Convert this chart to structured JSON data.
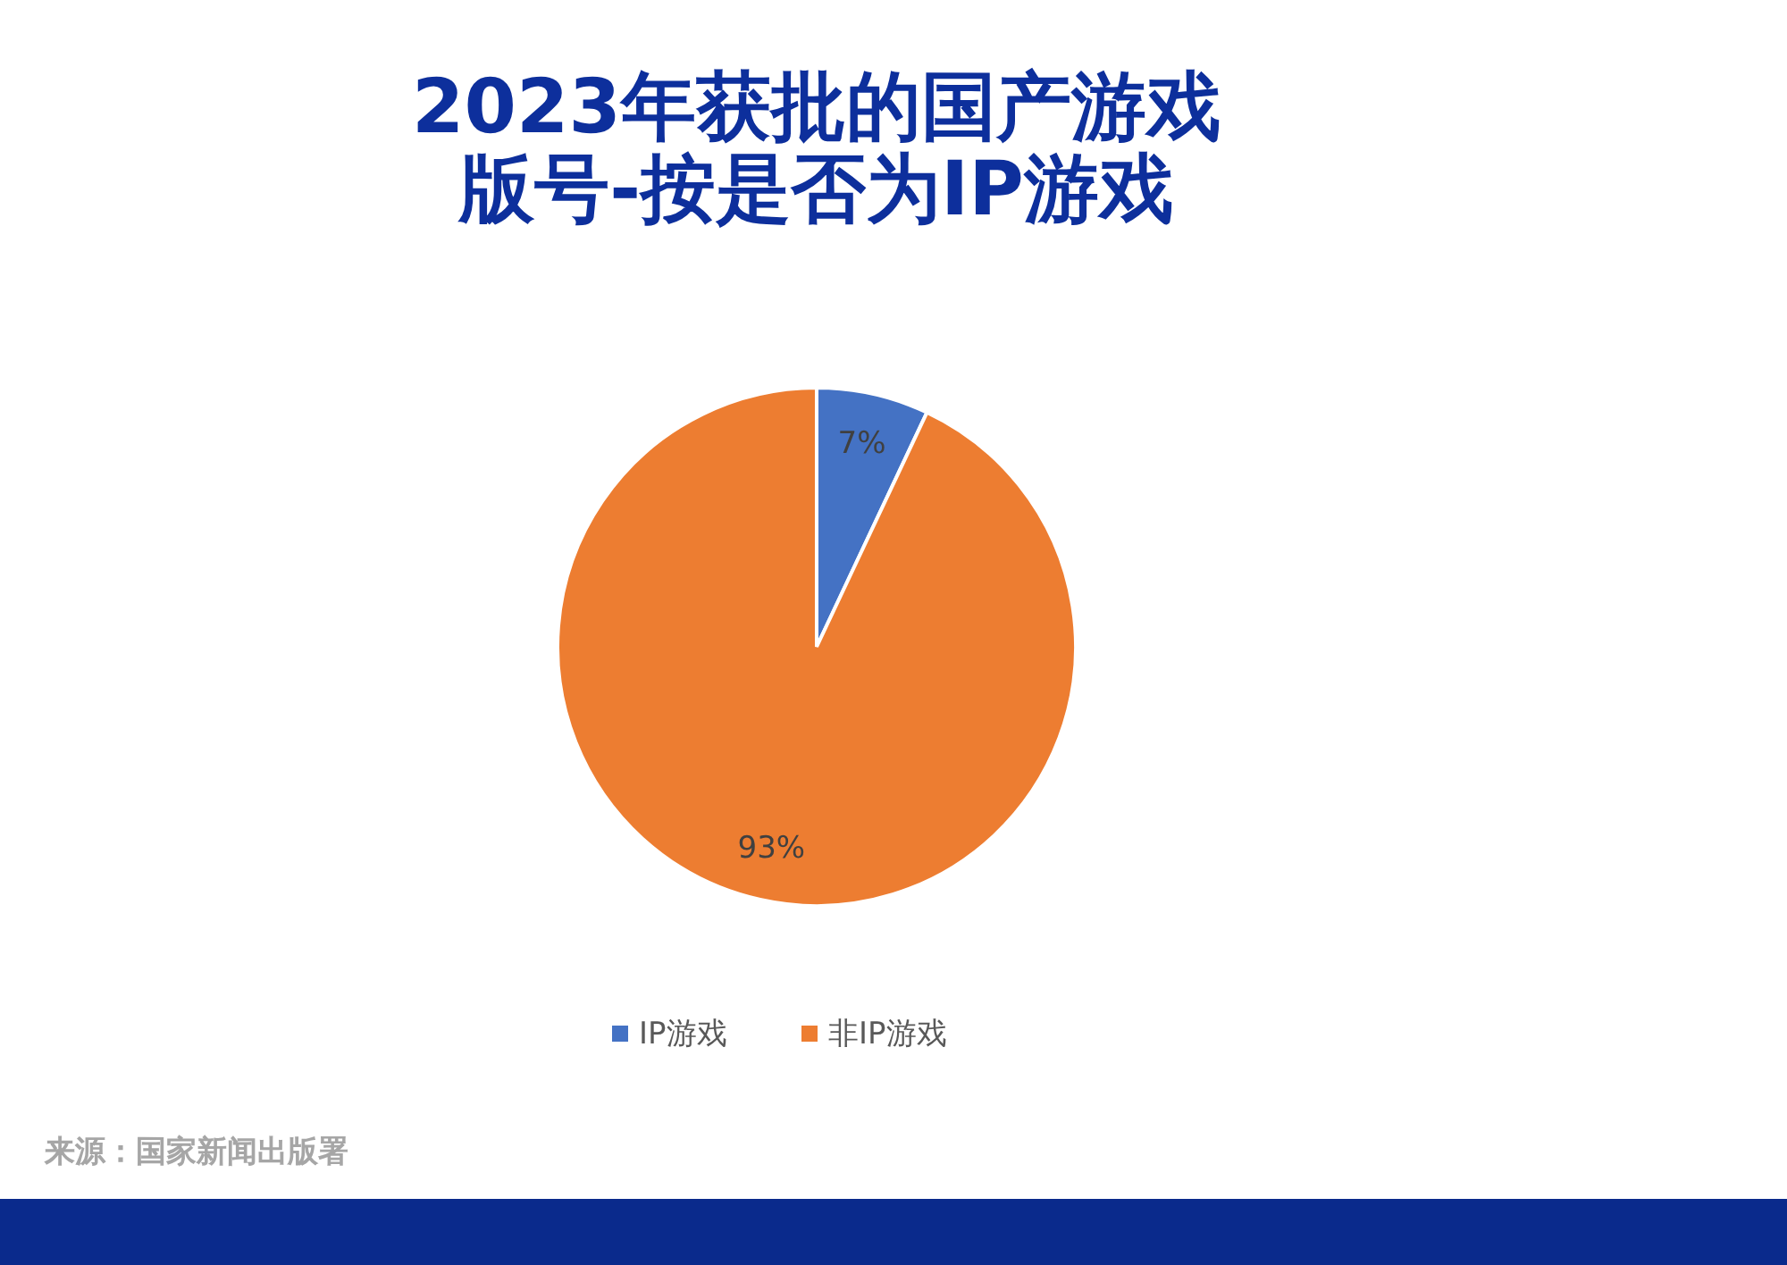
{
  "chart_data": {
    "type": "pie",
    "title": "2023年获批的国产游戏版号-按是否为IP游戏",
    "categories": [
      "IP游戏",
      "非IP游戏"
    ],
    "values": [
      7,
      93
    ],
    "colors": [
      "#4472c4",
      "#ed7d31"
    ],
    "value_labels": [
      "7%",
      "93%"
    ],
    "legend": "bottom",
    "annotations": [
      "来源：国家新闻出版署"
    ]
  }
}
